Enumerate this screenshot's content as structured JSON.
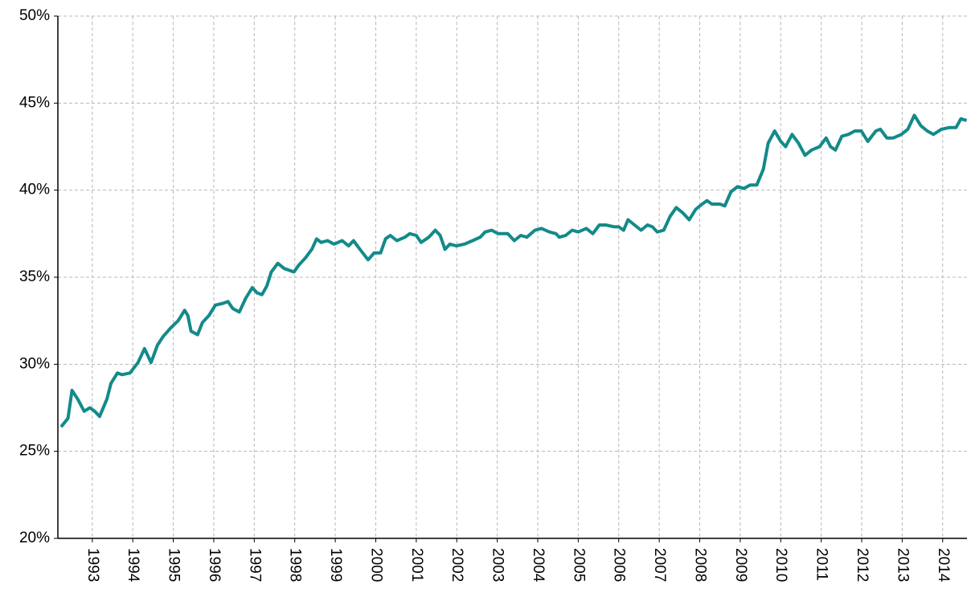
{
  "chart_data": {
    "type": "line",
    "color": "#138a8a",
    "grid": true,
    "x": [
      1992.23,
      1992.4,
      1992.5,
      1992.64,
      1992.8,
      1992.94,
      1993.06,
      1993.18,
      1993.36,
      1993.46,
      1993.62,
      1993.73,
      1993.93,
      1994.13,
      1994.29,
      1994.45,
      1994.61,
      1994.75,
      1994.94,
      1995.12,
      1995.28,
      1995.36,
      1995.44,
      1995.6,
      1995.72,
      1995.88,
      1996.04,
      1996.23,
      1996.35,
      1996.47,
      1996.63,
      1996.79,
      1996.95,
      1997.07,
      1997.19,
      1997.31,
      1997.42,
      1997.58,
      1997.74,
      1997.86,
      1997.98,
      1998.1,
      1998.26,
      1998.42,
      1998.54,
      1998.65,
      1998.81,
      1998.97,
      1999.17,
      1999.33,
      1999.45,
      1999.61,
      1999.81,
      1999.96,
      2000.12,
      2000.24,
      2000.36,
      2000.52,
      2000.72,
      2000.84,
      2001.0,
      2001.12,
      2001.31,
      2001.47,
      2001.59,
      2001.71,
      2001.83,
      2001.99,
      2002.19,
      2002.39,
      2002.58,
      2002.7,
      2002.86,
      2003.02,
      2003.26,
      2003.42,
      2003.58,
      2003.73,
      2003.93,
      2004.09,
      2004.29,
      2004.45,
      2004.53,
      2004.69,
      2004.85,
      2005.0,
      2005.2,
      2005.36,
      2005.52,
      2005.68,
      2005.88,
      2006.0,
      2006.12,
      2006.23,
      2006.39,
      2006.55,
      2006.71,
      2006.83,
      2006.95,
      2007.11,
      2007.27,
      2007.42,
      2007.58,
      2007.74,
      2007.9,
      2008.06,
      2008.18,
      2008.3,
      2008.5,
      2008.62,
      2008.77,
      2008.93,
      2009.09,
      2009.25,
      2009.41,
      2009.57,
      2009.69,
      2009.85,
      2010.0,
      2010.12,
      2010.28,
      2010.44,
      2010.6,
      2010.76,
      2010.96,
      2011.12,
      2011.23,
      2011.35,
      2011.51,
      2011.67,
      2011.83,
      2011.99,
      2012.15,
      2012.35,
      2012.46,
      2012.62,
      2012.78,
      2012.98,
      2013.14,
      2013.3,
      2013.46,
      2013.62,
      2013.77,
      2013.97,
      2014.17,
      2014.33,
      2014.45,
      2014.59
    ],
    "values": [
      26.4,
      26.9,
      28.5,
      28.0,
      27.3,
      27.5,
      27.3,
      27.0,
      28.0,
      28.9,
      29.5,
      29.4,
      29.5,
      30.1,
      30.9,
      30.1,
      31.1,
      31.6,
      32.1,
      32.5,
      33.1,
      32.8,
      31.9,
      31.7,
      32.4,
      32.8,
      33.4,
      33.5,
      33.6,
      33.2,
      33.0,
      33.8,
      34.4,
      34.1,
      34.0,
      34.5,
      35.3,
      35.8,
      35.5,
      35.4,
      35.3,
      35.7,
      36.1,
      36.6,
      37.2,
      37.0,
      37.1,
      36.9,
      37.1,
      36.8,
      37.1,
      36.6,
      36.0,
      36.4,
      36.4,
      37.2,
      37.4,
      37.1,
      37.3,
      37.5,
      37.4,
      37.0,
      37.3,
      37.7,
      37.4,
      36.6,
      36.9,
      36.8,
      36.9,
      37.1,
      37.3,
      37.6,
      37.7,
      37.5,
      37.5,
      37.1,
      37.4,
      37.3,
      37.7,
      37.8,
      37.6,
      37.5,
      37.3,
      37.4,
      37.7,
      37.6,
      37.8,
      37.5,
      38.0,
      38.0,
      37.9,
      37.9,
      37.7,
      38.3,
      38.0,
      37.7,
      38.0,
      37.9,
      37.6,
      37.7,
      38.5,
      39.0,
      38.7,
      38.3,
      38.9,
      39.2,
      39.4,
      39.2,
      39.2,
      39.1,
      39.9,
      40.2,
      40.1,
      40.3,
      40.3,
      41.2,
      42.7,
      43.4,
      42.8,
      42.5,
      43.2,
      42.7,
      42.0,
      42.3,
      42.5,
      43.0,
      42.5,
      42.3,
      43.1,
      43.2,
      43.4,
      43.4,
      42.8,
      43.4,
      43.5,
      43.0,
      43.0,
      43.2,
      43.5,
      44.3,
      43.7,
      43.4,
      43.2,
      43.5,
      43.6,
      43.6,
      44.1,
      44.0
    ],
    "xlim": [
      1992.15,
      2014.6
    ],
    "xticks": [
      1993,
      1994,
      1995,
      1996,
      1997,
      1998,
      1999,
      2000,
      2001,
      2002,
      2003,
      2004,
      2005,
      2006,
      2007,
      2008,
      2009,
      2010,
      2011,
      2012,
      2013,
      2014
    ],
    "ylim": [
      20,
      50
    ],
    "yticks": [
      {
        "value": 20,
        "label": "20%"
      },
      {
        "value": 25,
        "label": "25%"
      },
      {
        "value": 30,
        "label": "30%"
      },
      {
        "value": 35,
        "label": "35%"
      },
      {
        "value": 40,
        "label": "40%"
      },
      {
        "value": 45,
        "label": "45%"
      },
      {
        "value": 50,
        "label": "50%"
      }
    ]
  }
}
